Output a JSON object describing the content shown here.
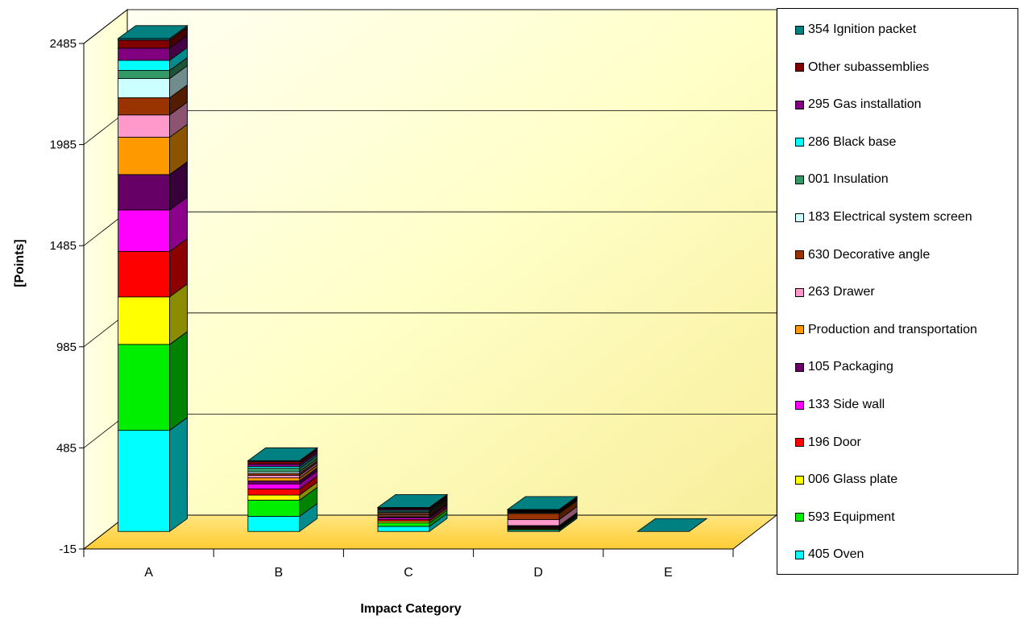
{
  "chart_data": {
    "type": "bar",
    "stacked": true,
    "three_d": true,
    "xlabel": "Impact Category",
    "ylabel": "[Points]",
    "categories": [
      "A",
      "B",
      "C",
      "D",
      "E"
    ],
    "yticks": [
      "2485",
      "1985",
      "1485",
      "985",
      "485",
      "-15"
    ],
    "ylim": [
      -15,
      2485
    ],
    "legend_position": "right",
    "series": [
      {
        "name": "405 Oven",
        "color": "#00FFFF",
        "values": [
          500,
          75,
          25,
          6,
          0
        ]
      },
      {
        "name": "593 Equipment",
        "color": "#00EE00",
        "values": [
          425,
          80,
          18,
          5,
          0
        ]
      },
      {
        "name": "006 Glass plate",
        "color": "#FFFF00",
        "values": [
          235,
          25,
          8,
          4,
          0
        ]
      },
      {
        "name": "196 Door",
        "color": "#FF0000",
        "values": [
          225,
          30,
          8,
          4,
          0
        ]
      },
      {
        "name": "133 Side wall",
        "color": "#FF00FF",
        "values": [
          205,
          25,
          8,
          4,
          0
        ]
      },
      {
        "name": "105 Packaging",
        "color": "#660066",
        "values": [
          175,
          15,
          5,
          3,
          0
        ]
      },
      {
        "name": "Production and transportation",
        "color": "#FF9900",
        "values": [
          185,
          15,
          5,
          3,
          0
        ]
      },
      {
        "name": "263 Drawer",
        "color": "#FF99CC",
        "values": [
          110,
          12,
          5,
          30,
          0
        ]
      },
      {
        "name": "630 Decorative angle",
        "color": "#993300",
        "values": [
          85,
          10,
          8,
          30,
          0
        ]
      },
      {
        "name": "183 Electrical system screen",
        "color": "#CCFFFF",
        "values": [
          95,
          8,
          5,
          4,
          0
        ]
      },
      {
        "name": "001 Insulation",
        "color": "#339966",
        "values": [
          40,
          18,
          5,
          3,
          0
        ]
      },
      {
        "name": "286 Black base",
        "color": "#00FFFF",
        "values": [
          50,
          8,
          5,
          3,
          0
        ]
      },
      {
        "name": "295 Gas installation",
        "color": "#800080",
        "values": [
          60,
          12,
          5,
          3,
          0
        ]
      },
      {
        "name": "Other subassemblies",
        "color": "#800000",
        "values": [
          40,
          12,
          5,
          3,
          0
        ]
      },
      {
        "name": "354 Ignition packet",
        "color": "#008080",
        "values": [
          8,
          5,
          4,
          4,
          0
        ]
      }
    ]
  }
}
